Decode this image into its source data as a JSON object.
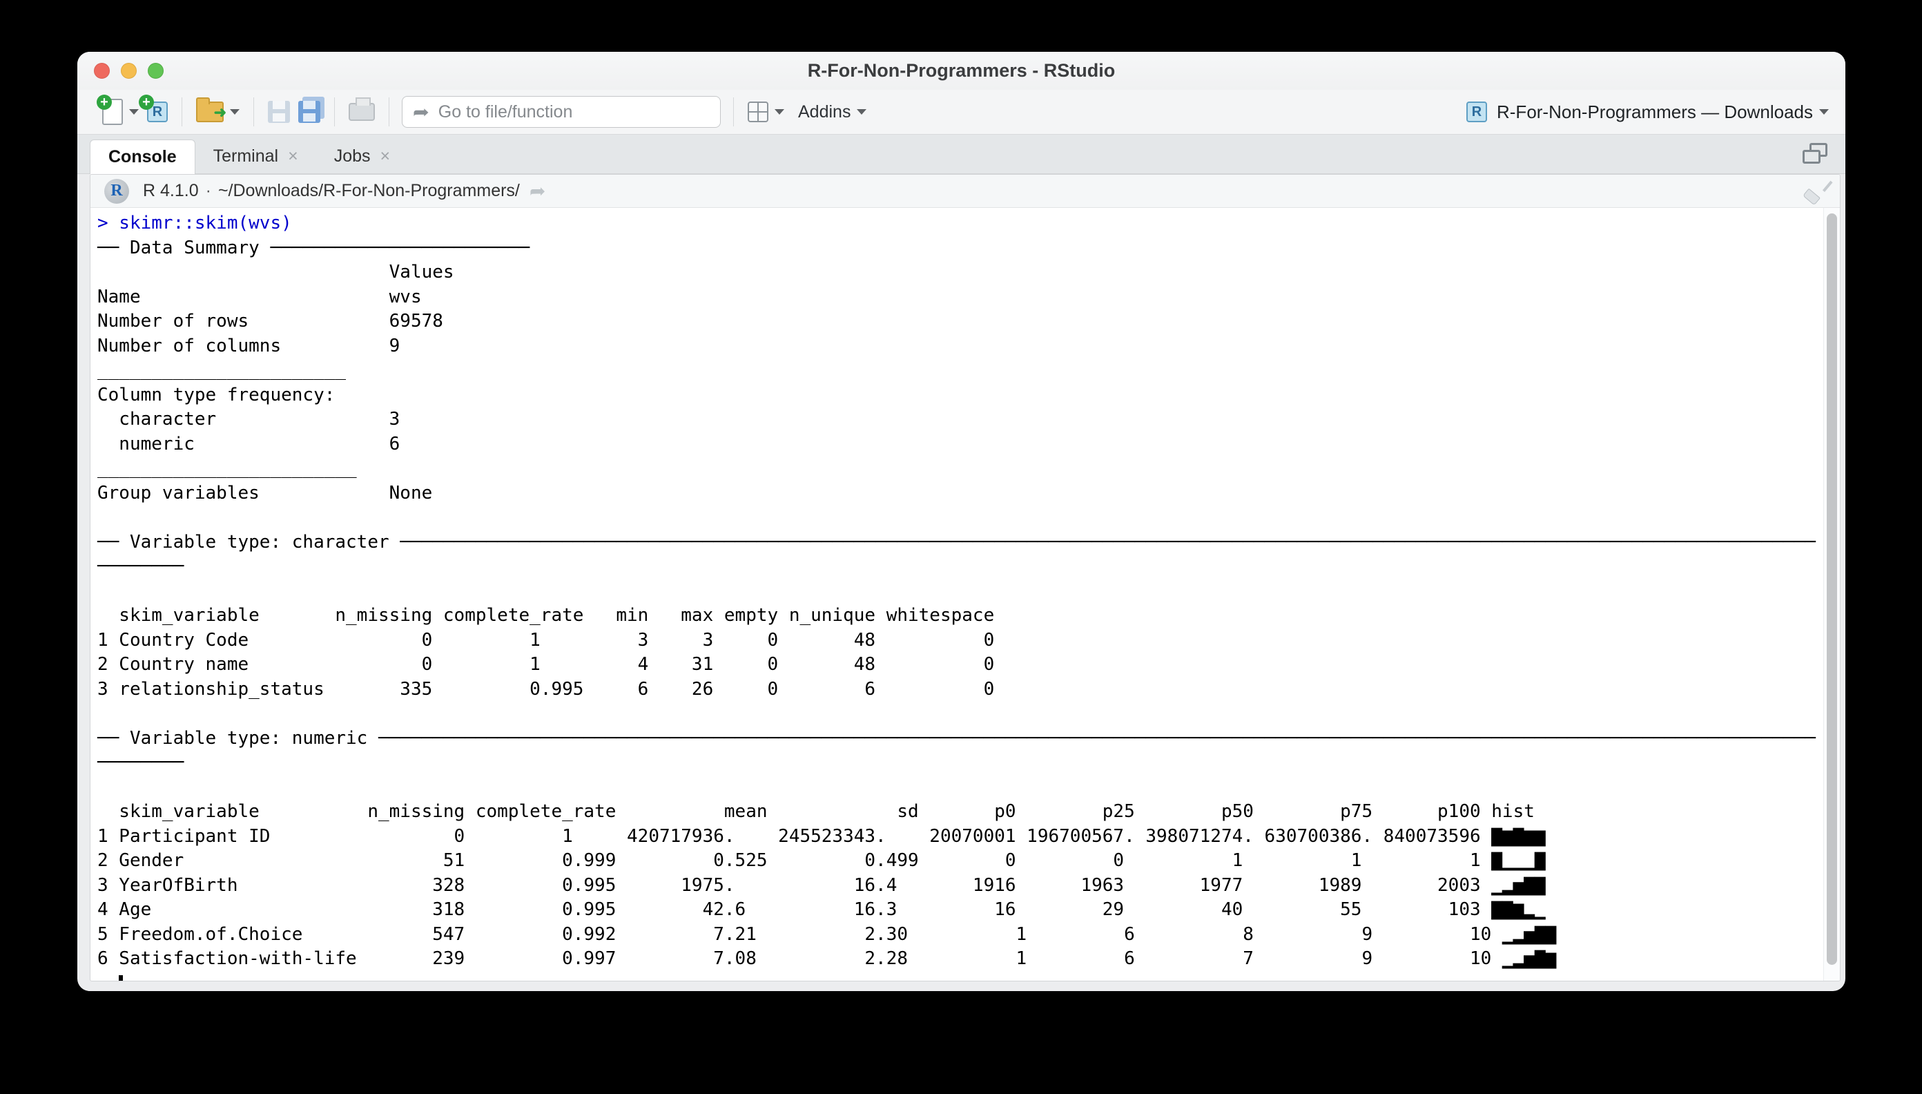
{
  "window": {
    "title": "R-For-Non-Programmers - RStudio"
  },
  "toolbar": {
    "goto_placeholder": "Go to file/function",
    "addins_label": "Addins",
    "project_label": "R-For-Non-Programmers — Downloads",
    "folder_arrow": "➜",
    "go_arrow": "➦",
    "plus": "+",
    "r_letter": "R"
  },
  "tab_bar": {
    "tabs": [
      {
        "label": "Console",
        "active": true,
        "closable": false
      },
      {
        "label": "Terminal",
        "active": false,
        "closable": true
      },
      {
        "label": "Jobs",
        "active": false,
        "closable": true
      }
    ],
    "close_glyph": "×"
  },
  "version_bar": {
    "r_logo_letter": "R",
    "r_version": "R 4.1.0",
    "dot": "·",
    "working_dir": "~/Downloads/R-For-Non-Programmers/",
    "open_arrow": "➦"
  },
  "console": {
    "lines": [
      {
        "t": "> skimr::skim(wvs)",
        "c": "cmd"
      },
      {
        "t": "── Data Summary ",
        "fill_char": "─",
        "fill_to": 40
      },
      {
        "t": "                           Values"
      },
      {
        "t": "Name                       wvs"
      },
      {
        "t": "Number of rows             69578"
      },
      {
        "t": "Number of columns          9"
      },
      {
        "t": "_______________________"
      },
      {
        "t": "Column type frequency:"
      },
      {
        "t": "  character                3"
      },
      {
        "t": "  numeric                  6"
      },
      {
        "t": "________________________"
      },
      {
        "t": "Group variables            None"
      },
      {
        "t": ""
      },
      {
        "t": "── Variable type: character ",
        "fill_char": "─",
        "fill_to": 159
      },
      {
        "t": "────────"
      },
      {
        "t": ""
      },
      {
        "t": "  skim_variable       n_missing complete_rate   min   max empty n_unique whitespace"
      },
      {
        "t": "1 Country Code                0         1         3     3     0       48          0"
      },
      {
        "t": "2 Country name                0         1         4    31     0       48          0"
      },
      {
        "t": "3 relationship_status       335         0.995     6    26     0        6          0"
      },
      {
        "t": ""
      },
      {
        "t": "── Variable type: numeric ",
        "fill_char": "─",
        "fill_to": 159
      },
      {
        "t": "────────"
      },
      {
        "t": ""
      },
      {
        "t": "  skim_variable          n_missing complete_rate          mean            sd       p0        p25        p50        p75      p100 hist "
      },
      {
        "t": "1 Participant ID                 0         1     420717936.    245523343.    20070001 196700567. 398071274. 630700386. 840073596 ▇▆▇▆▆"
      },
      {
        "t": "2 Gender                        51         0.999         0.525         0.499        0         0          1          1          1 ▇▁▁▁▇"
      },
      {
        "t": "3 YearOfBirth                  328         0.995      1975.           16.4       1916      1963       1977       1989       2003 ▁▂▅▇▇"
      },
      {
        "t": "4 Age                          318         0.995        42.6          16.3         16        29         40         55        103 ▇▇▆▂▁"
      },
      {
        "t": "5 Freedom.of.Choice            547         0.992         7.21          2.30          1         6          8          9         10 ▁▂▅▇▇"
      },
      {
        "t": "6 Satisfaction-with-life       239         0.997         7.08          2.28          1         6          7          9         10 ▁▂▅▇▆"
      },
      {
        "t": "  ",
        "cursor": true
      }
    ]
  }
}
